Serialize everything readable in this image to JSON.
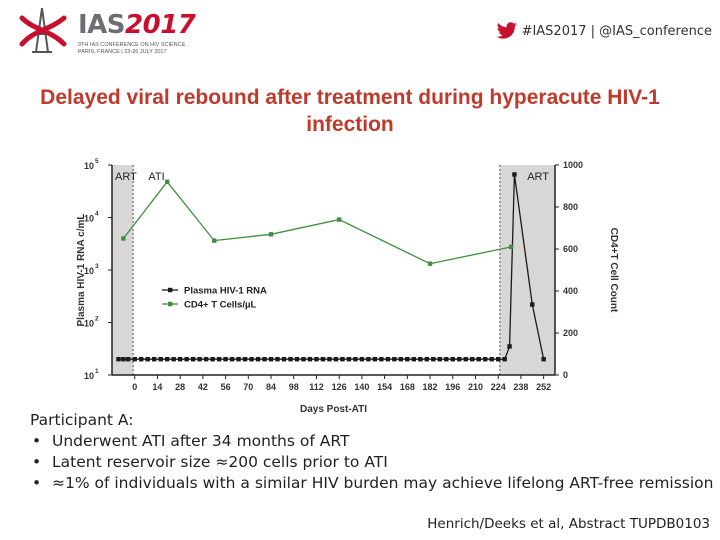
{
  "header": {
    "logo_main": "IAS",
    "logo_year": "2017",
    "logo_sub_1": "9TH IAS CONFERENCE ON HIV SCIENCE",
    "logo_sub_2": "PARIS, FRANCE | 23-26 JULY 2017",
    "twitter_text": "#IAS2017 | @IAS_conference",
    "twitter_color": "#1da1f2",
    "accent_color": "#c8102e"
  },
  "slide": {
    "title": "Delayed viral rebound after treatment during hyperacute HIV-1 infection",
    "bullets_heading": "Participant A:",
    "bullets": [
      "Underwent ATI after 34 months of ART",
      "Latent reservoir size ≈200 cells prior to ATI",
      "≈1% of individuals with a similar HIV burden may achieve lifelong ART-free remission"
    ],
    "citation": "Henrich/Deeks et al, Abstract TUPDB0103"
  },
  "chart_data": {
    "type": "line",
    "xlabel": "Days Post-ATI",
    "ylabel": "Plasma HIV-1 RNA c/mL",
    "y2label": "CD4+T Cell Count",
    "x_ticks": [
      0,
      14,
      28,
      42,
      56,
      70,
      84,
      98,
      112,
      126,
      140,
      154,
      168,
      182,
      196,
      210,
      224,
      238,
      252
    ],
    "xlim": [
      -14,
      259
    ],
    "y_log": true,
    "ylim": [
      10,
      100000
    ],
    "y_ticks": [
      "10",
      "10",
      "10",
      "10",
      "10"
    ],
    "y_tick_exponents": [
      "1",
      "2",
      "3",
      "4",
      "5"
    ],
    "y_tick_values": [
      10,
      100,
      1000,
      10000,
      100000
    ],
    "y2lim": [
      0,
      1000
    ],
    "y2_ticks": [
      0,
      200,
      400,
      600,
      800,
      1000
    ],
    "shaded_regions": [
      {
        "label": "ART",
        "from": -14,
        "to": -1
      },
      {
        "label": "ART",
        "to": 259,
        "from": 225
      }
    ],
    "annotations": [
      {
        "text": "ATI",
        "x": 1
      }
    ],
    "legend_position": "middle-left",
    "series": [
      {
        "name": "Plasma HIV-1 RNA",
        "axis": "left",
        "color": "#1a1a1a",
        "marker": "square",
        "x": [
          -10,
          -7,
          -4,
          0,
          4,
          8,
          12,
          16,
          20,
          24,
          28,
          32,
          36,
          40,
          44,
          48,
          52,
          56,
          60,
          64,
          68,
          72,
          76,
          80,
          84,
          88,
          92,
          96,
          100,
          104,
          108,
          112,
          116,
          120,
          124,
          128,
          132,
          136,
          140,
          144,
          148,
          152,
          156,
          160,
          164,
          168,
          172,
          176,
          180,
          184,
          188,
          192,
          196,
          200,
          204,
          208,
          212,
          216,
          220,
          224,
          228,
          231,
          234,
          245,
          252
        ],
        "values": [
          20,
          20,
          20,
          20,
          20,
          20,
          20,
          20,
          20,
          20,
          20,
          20,
          20,
          20,
          20,
          20,
          20,
          20,
          20,
          20,
          20,
          20,
          20,
          20,
          20,
          20,
          20,
          20,
          20,
          20,
          20,
          20,
          20,
          20,
          20,
          20,
          20,
          20,
          20,
          20,
          20,
          20,
          20,
          20,
          20,
          20,
          20,
          20,
          20,
          20,
          20,
          20,
          20,
          20,
          20,
          20,
          20,
          20,
          20,
          20,
          20,
          35,
          66000,
          220,
          20
        ]
      },
      {
        "name": "CD4+ T Cells/µL",
        "axis": "right",
        "color": "#3f8f3f",
        "marker": "square",
        "x": [
          -7,
          20,
          49,
          84,
          126,
          182,
          232
        ],
        "values": [
          650,
          920,
          640,
          670,
          740,
          530,
          610
        ]
      }
    ]
  }
}
